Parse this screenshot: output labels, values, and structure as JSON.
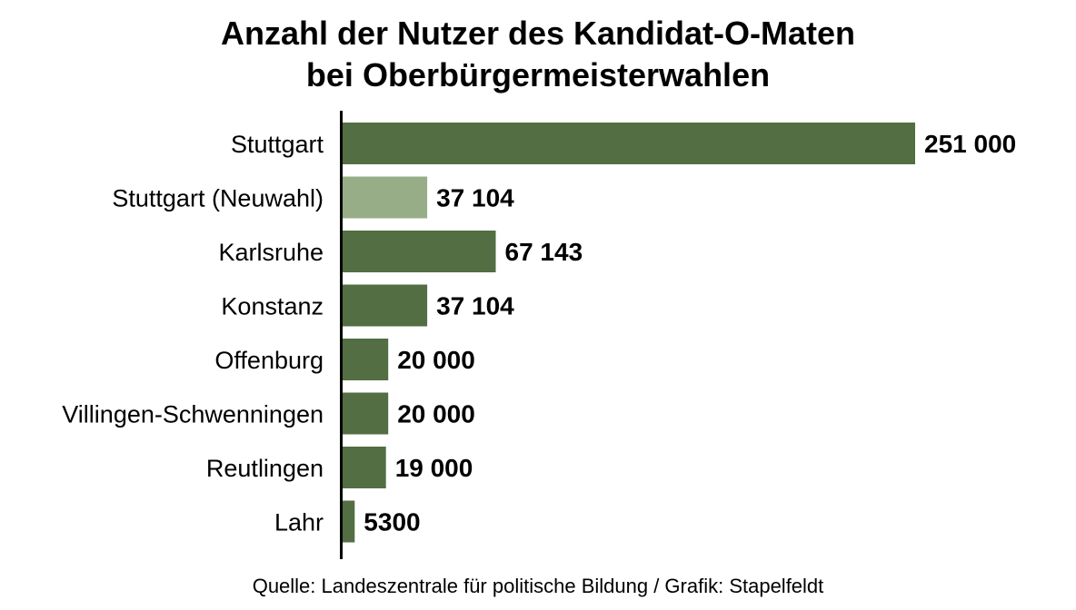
{
  "chart_data": {
    "type": "bar",
    "orientation": "horizontal",
    "title": "Anzahl der Nutzer des Kandidat-O-Maten bei Oberbürgermeisterwahlen",
    "title_lines": [
      "Anzahl der Nutzer des Kandidat-O-Maten",
      "bei Oberbürgermeisterwahlen"
    ],
    "xlabel": "",
    "ylabel": "",
    "categories": [
      "Stuttgart",
      "Stuttgart (Neuwahl)",
      "Karlsruhe",
      "Konstanz",
      "Offenburg",
      "Villingen-Schwenningen",
      "Reutlingen",
      "Lahr"
    ],
    "values": [
      251000,
      37104,
      67143,
      37104,
      20000,
      20000,
      19000,
      5300
    ],
    "value_labels": [
      "251 000",
      "37 104",
      "67 143",
      "37 104",
      "20 000",
      "20 000",
      "19 000",
      "5300"
    ],
    "bar_colors": [
      "#536e43",
      "#97ad87",
      "#536e43",
      "#536e43",
      "#536e43",
      "#536e43",
      "#536e43",
      "#536e43"
    ],
    "xlim": [
      0,
      251000
    ],
    "grid": false,
    "legend": "none"
  },
  "source": "Quelle: Landeszentrale für politische Bildung / Grafik: Stapelfeldt"
}
